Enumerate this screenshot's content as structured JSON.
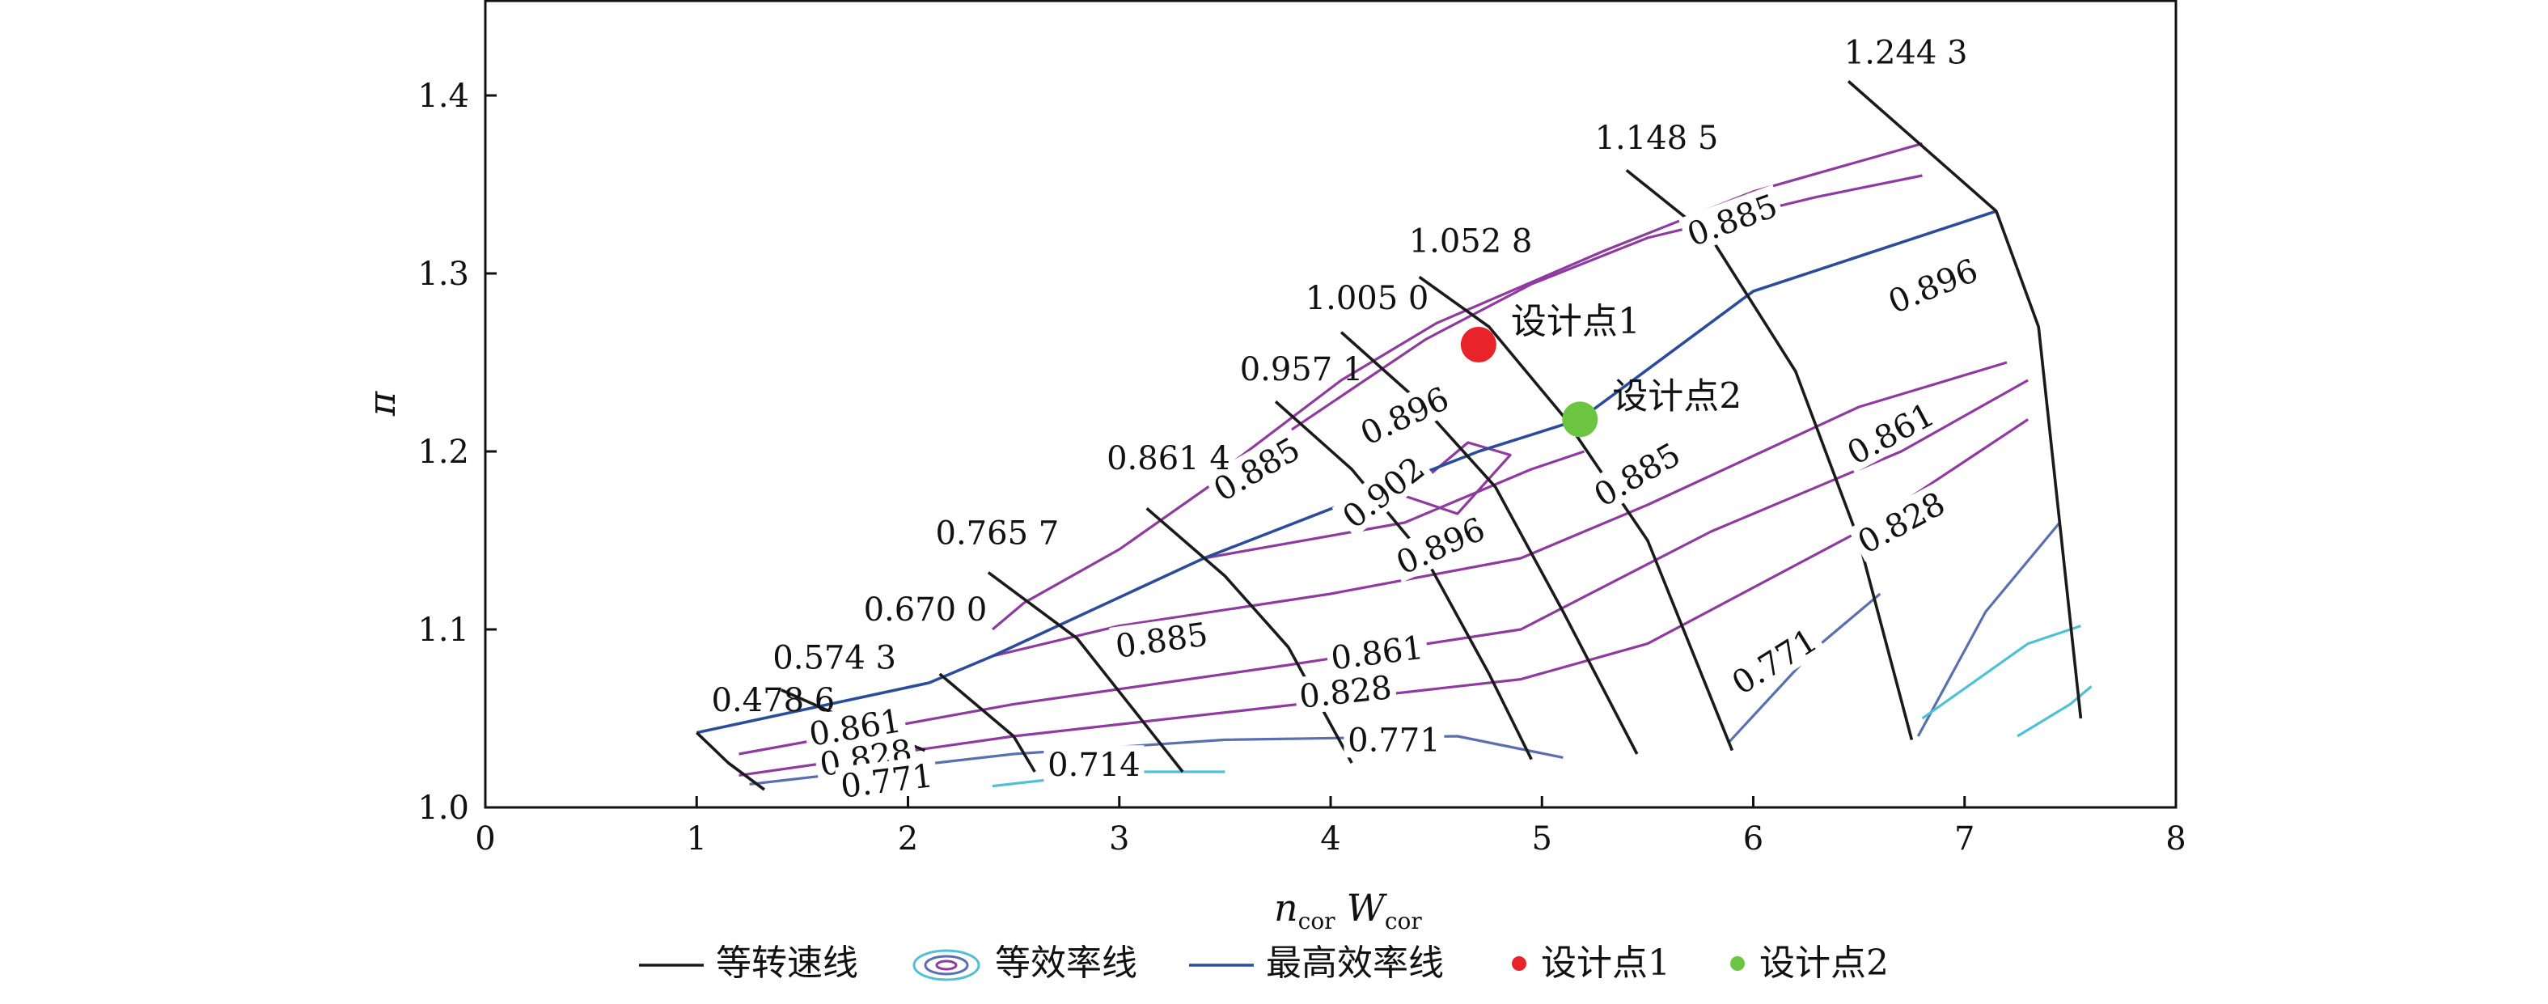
{
  "chart_data": {
    "type": "line",
    "xlabel": {
      "main": "n",
      "sub1": "cor",
      "main2": "W",
      "sub2": "cor"
    },
    "ylabel": "π",
    "xlim": [
      0,
      8
    ],
    "ylim": [
      1.0,
      1.45
    ],
    "xticks": [
      "0",
      "1",
      "2",
      "3",
      "4",
      "5",
      "6",
      "7",
      "8"
    ],
    "yticks": [
      "1.0",
      "1.1",
      "1.2",
      "1.3",
      "1.4"
    ],
    "grid": false,
    "legend_position": "bottom",
    "colors": {
      "speed": "#1a1a1a",
      "eff_high": "#8e3a9e",
      "eff_mid": "#5a6fb0",
      "eff_low": "#4fc0d6",
      "max_eff": "#2b4c9c",
      "design1": "#e8232a",
      "design2": "#6cc540"
    },
    "speed_lines": [
      {
        "label": "0.478 6",
        "points": [
          [
            1.0,
            1.042
          ],
          [
            1.15,
            1.025
          ],
          [
            1.32,
            1.01
          ]
        ]
      },
      {
        "label": "0.574 3",
        "points": [
          [
            1.4,
            1.066
          ],
          [
            1.8,
            1.045
          ],
          [
            2.08,
            1.032
          ]
        ]
      },
      {
        "label": "0.670 0",
        "points": [
          [
            2.15,
            1.075
          ],
          [
            2.5,
            1.04
          ],
          [
            2.6,
            1.02
          ]
        ]
      },
      {
        "label": "0.765 7",
        "points": [
          [
            2.38,
            1.132
          ],
          [
            2.8,
            1.095
          ],
          [
            3.1,
            1.05
          ],
          [
            3.3,
            1.02
          ]
        ]
      },
      {
        "label": "0.861 4",
        "points": [
          [
            3.13,
            1.168
          ],
          [
            3.5,
            1.13
          ],
          [
            3.8,
            1.09
          ],
          [
            4.1,
            1.025
          ]
        ]
      },
      {
        "label": "0.957 1",
        "points": [
          [
            3.74,
            1.228
          ],
          [
            4.1,
            1.19
          ],
          [
            4.45,
            1.14
          ],
          [
            4.75,
            1.075
          ],
          [
            4.95,
            1.027
          ]
        ]
      },
      {
        "label": "1.005 0",
        "points": [
          [
            4.05,
            1.267
          ],
          [
            4.4,
            1.23
          ],
          [
            4.78,
            1.18
          ],
          [
            5.1,
            1.11
          ],
          [
            5.45,
            1.03
          ]
        ]
      },
      {
        "label": "1.052 8",
        "points": [
          [
            4.42,
            1.298
          ],
          [
            4.75,
            1.27
          ],
          [
            5.1,
            1.22
          ],
          [
            5.5,
            1.15
          ],
          [
            5.9,
            1.032
          ]
        ]
      },
      {
        "label": "1.148 5",
        "points": [
          [
            5.4,
            1.358
          ],
          [
            5.8,
            1.32
          ],
          [
            6.2,
            1.245
          ],
          [
            6.5,
            1.15
          ],
          [
            6.75,
            1.038
          ]
        ]
      },
      {
        "label": "1.244 3",
        "points": [
          [
            6.45,
            1.408
          ],
          [
            7.15,
            1.335
          ],
          [
            7.35,
            1.27
          ],
          [
            7.55,
            1.05
          ]
        ]
      }
    ],
    "max_efficiency_line": {
      "points": [
        [
          1.0,
          1.042
        ],
        [
          2.1,
          1.07
        ],
        [
          2.4,
          1.085
        ],
        [
          3.4,
          1.14
        ],
        [
          4.7,
          1.2
        ],
        [
          5.18,
          1.218
        ],
        [
          6.0,
          1.29
        ],
        [
          7.15,
          1.335
        ]
      ]
    },
    "efficiency_contours": [
      {
        "label": "0.896",
        "level": "high",
        "points": [
          [
            4.1,
            1.235
          ],
          [
            4.45,
            1.263
          ],
          [
            4.95,
            1.294
          ],
          [
            5.5,
            1.32
          ],
          [
            6.3,
            1.343
          ],
          [
            6.8,
            1.355
          ]
        ]
      },
      {
        "label": "0.885",
        "level": "high",
        "points": [
          [
            3.55,
            1.195
          ],
          [
            4.05,
            1.24
          ],
          [
            4.5,
            1.272
          ],
          [
            5.3,
            1.313
          ],
          [
            6.0,
            1.346
          ],
          [
            6.8,
            1.373
          ]
        ]
      },
      {
        "label": "0.902",
        "level": "high",
        "points": [
          [
            4.35,
            1.175
          ],
          [
            4.65,
            1.205
          ],
          [
            4.85,
            1.198
          ],
          [
            4.6,
            1.165
          ],
          [
            4.35,
            1.175
          ]
        ]
      },
      {
        "label": "0.896",
        "level": "high",
        "points": [
          [
            3.4,
            1.14
          ],
          [
            4.35,
            1.16
          ],
          [
            4.95,
            1.19
          ],
          [
            5.2,
            1.2
          ]
        ]
      },
      {
        "label": "0.885",
        "level": "high",
        "points": [
          [
            2.4,
            1.1
          ],
          [
            2.55,
            1.115
          ],
          [
            3.0,
            1.145
          ],
          [
            3.6,
            1.195
          ],
          [
            4.1,
            1.235
          ]
        ]
      },
      {
        "label": "0.885",
        "level": "high",
        "points": [
          [
            2.4,
            1.085
          ],
          [
            3.0,
            1.102
          ],
          [
            4.0,
            1.12
          ],
          [
            4.9,
            1.14
          ],
          [
            5.5,
            1.17
          ],
          [
            6.5,
            1.225
          ],
          [
            7.2,
            1.25
          ]
        ]
      },
      {
        "label": "0.861",
        "level": "high",
        "points": [
          [
            1.2,
            1.03
          ],
          [
            2.5,
            1.058
          ],
          [
            3.8,
            1.08
          ],
          [
            4.9,
            1.1
          ],
          [
            5.8,
            1.155
          ],
          [
            6.7,
            1.2
          ],
          [
            7.3,
            1.24
          ]
        ]
      },
      {
        "label": "0.828",
        "level": "high",
        "points": [
          [
            1.2,
            1.018
          ],
          [
            2.5,
            1.04
          ],
          [
            4.0,
            1.06
          ],
          [
            4.9,
            1.072
          ],
          [
            5.5,
            1.092
          ],
          [
            6.5,
            1.155
          ],
          [
            7.3,
            1.218
          ]
        ]
      },
      {
        "label": "0.771",
        "level": "mid",
        "points": [
          [
            1.25,
            1.013
          ],
          [
            2.5,
            1.03
          ],
          [
            3.5,
            1.038
          ],
          [
            4.6,
            1.04
          ],
          [
            5.1,
            1.028
          ]
        ]
      },
      {
        "label": "0.714",
        "level": "low",
        "points": [
          [
            2.4,
            1.012
          ],
          [
            3.0,
            1.02
          ],
          [
            3.5,
            1.02
          ]
        ]
      },
      {
        "label": "0.771",
        "level": "mid",
        "points": [
          [
            5.88,
            1.036
          ],
          [
            6.3,
            1.09
          ],
          [
            6.6,
            1.12
          ]
        ]
      },
      {
        "label": "0.771",
        "level": "mid",
        "points": [
          [
            6.78,
            1.04
          ],
          [
            7.1,
            1.11
          ],
          [
            7.45,
            1.16
          ]
        ]
      },
      {
        "label": "",
        "level": "low",
        "points": [
          [
            6.8,
            1.05
          ],
          [
            7.3,
            1.092
          ],
          [
            7.55,
            1.102
          ]
        ]
      },
      {
        "label": "",
        "level": "low",
        "points": [
          [
            7.25,
            1.04
          ],
          [
            7.5,
            1.058
          ],
          [
            7.6,
            1.068
          ]
        ]
      }
    ],
    "contour_labels": [
      {
        "text": "0.885",
        "x": 5.9,
        "y": 1.33,
        "angle": -20
      },
      {
        "text": "0.896",
        "x": 6.85,
        "y": 1.293,
        "angle": -22
      },
      {
        "text": "0.896",
        "x": 4.35,
        "y": 1.22,
        "angle": -25
      },
      {
        "text": "0.885",
        "x": 3.65,
        "y": 1.19,
        "angle": -30
      },
      {
        "text": "0.902",
        "x": 4.25,
        "y": 1.177,
        "angle": -38
      },
      {
        "text": "0.896",
        "x": 4.52,
        "y": 1.147,
        "angle": -24
      },
      {
        "text": "0.885",
        "x": 5.45,
        "y": 1.187,
        "angle": -30
      },
      {
        "text": "0.861",
        "x": 6.65,
        "y": 1.21,
        "angle": -28
      },
      {
        "text": "0.828",
        "x": 6.7,
        "y": 1.16,
        "angle": -28
      },
      {
        "text": "0.885",
        "x": 3.2,
        "y": 1.094,
        "angle": -8
      },
      {
        "text": "0.861",
        "x": 4.22,
        "y": 1.087,
        "angle": -7
      },
      {
        "text": "0.828",
        "x": 4.07,
        "y": 1.065,
        "angle": -6
      },
      {
        "text": "0.771",
        "x": 4.3,
        "y": 1.038,
        "angle": 0
      },
      {
        "text": "0.861",
        "x": 1.75,
        "y": 1.045,
        "angle": -9
      },
      {
        "text": "0.828",
        "x": 1.8,
        "y": 1.028,
        "angle": -9
      },
      {
        "text": "0.771",
        "x": 1.9,
        "y": 1.015,
        "angle": -7
      },
      {
        "text": "0.714",
        "x": 2.88,
        "y": 1.024,
        "angle": 0
      },
      {
        "text": "0.771",
        "x": 6.1,
        "y": 1.082,
        "angle": -32
      }
    ],
    "speed_label_positions": [
      {
        "x": 1.07,
        "y": 1.054
      },
      {
        "x": 1.36,
        "y": 1.078
      },
      {
        "x": 1.79,
        "y": 1.105
      },
      {
        "x": 2.13,
        "y": 1.148
      },
      {
        "x": 2.94,
        "y": 1.19
      },
      {
        "x": 3.57,
        "y": 1.24
      },
      {
        "x": 3.88,
        "y": 1.28
      },
      {
        "x": 4.37,
        "y": 1.312
      },
      {
        "x": 5.25,
        "y": 1.37
      },
      {
        "x": 6.43,
        "y": 1.418
      }
    ],
    "design_points": [
      {
        "name": "设计点1",
        "x": 4.7,
        "y": 1.26,
        "color": "#e8232a"
      },
      {
        "name": "设计点2",
        "x": 5.18,
        "y": 1.218,
        "color": "#6cc540"
      }
    ],
    "legend": [
      {
        "label": "等转速线",
        "kind": "line",
        "color": "#1a1a1a"
      },
      {
        "label": "等效率线",
        "kind": "contour",
        "color": "#8e3a9e"
      },
      {
        "label": "最高效率线",
        "kind": "line",
        "color": "#2b4c9c"
      },
      {
        "label": "设计点1",
        "kind": "dot",
        "color": "#e8232a"
      },
      {
        "label": "设计点2",
        "kind": "dot",
        "color": "#6cc540"
      }
    ]
  }
}
